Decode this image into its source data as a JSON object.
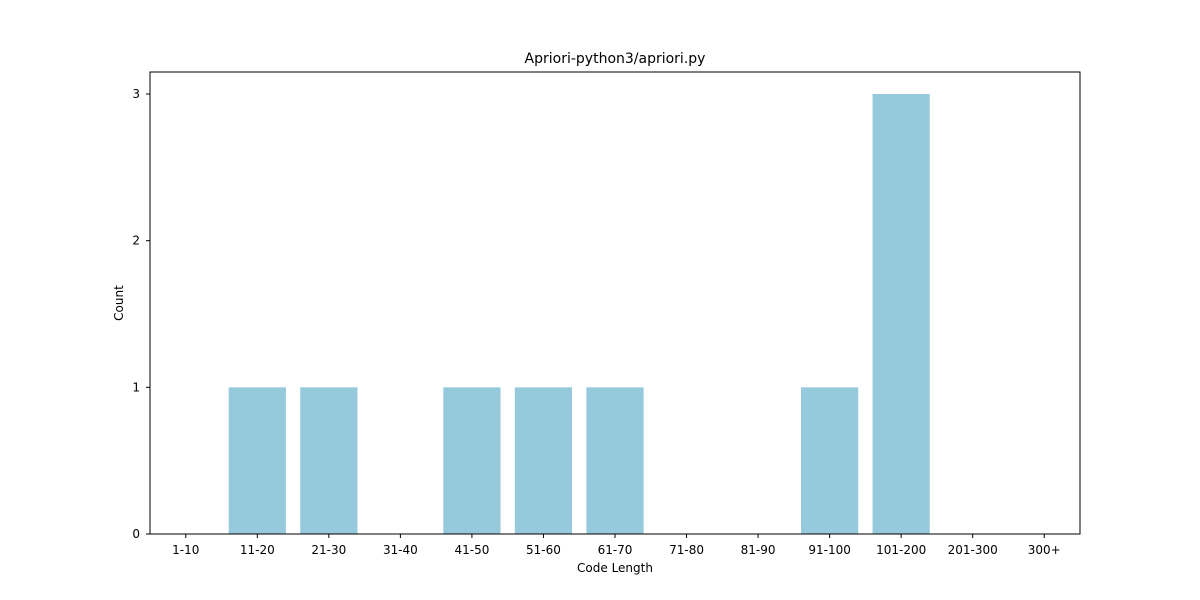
{
  "chart_data": {
    "type": "bar",
    "title": "Apriori-python3/apriori.py",
    "xlabel": "Code Length",
    "ylabel": "Count",
    "categories": [
      "1-10",
      "11-20",
      "21-30",
      "31-40",
      "41-50",
      "51-60",
      "61-70",
      "71-80",
      "81-90",
      "91-100",
      "101-200",
      "201-300",
      "300+"
    ],
    "values": [
      0,
      1,
      1,
      0,
      1,
      1,
      1,
      0,
      0,
      1,
      3,
      0,
      0
    ],
    "ylim": [
      0,
      3.15
    ],
    "yticks": [
      0,
      1,
      2,
      3
    ],
    "bar_color": "#96c9dc",
    "grid": false,
    "legend": "none"
  }
}
